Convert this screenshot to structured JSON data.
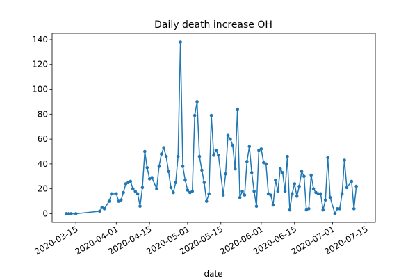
{
  "chart_data": {
    "type": "line",
    "title": "Daily death increase OH",
    "xlabel": "date",
    "ylabel": "",
    "xlim": [
      "2020-03-05",
      "2020-07-19"
    ],
    "ylim": [
      -7,
      145
    ],
    "grid": false,
    "line_color": "#1f77b4",
    "marker": "circle",
    "x_ticks": [
      "2020-03-15",
      "2020-04-01",
      "2020-04-15",
      "2020-05-01",
      "2020-05-15",
      "2020-06-01",
      "2020-06-15",
      "2020-07-01",
      "2020-07-15"
    ],
    "y_ticks": [
      0,
      20,
      40,
      60,
      80,
      100,
      120,
      140
    ],
    "series": [
      {
        "points": [
          [
            "2020-03-11",
            0
          ],
          [
            "2020-03-12",
            0
          ],
          [
            "2020-03-13",
            0
          ],
          [
            "2020-03-15",
            0
          ],
          [
            "2020-03-25",
            2
          ],
          [
            "2020-03-26",
            5
          ],
          [
            "2020-03-27",
            4
          ],
          [
            "2020-03-29",
            10
          ],
          [
            "2020-03-30",
            16
          ],
          [
            "2020-04-01",
            16
          ],
          [
            "2020-04-02",
            10
          ],
          [
            "2020-04-03",
            11
          ],
          [
            "2020-04-04",
            17
          ],
          [
            "2020-04-05",
            24
          ],
          [
            "2020-04-06",
            25
          ],
          [
            "2020-04-07",
            26
          ],
          [
            "2020-04-08",
            20
          ],
          [
            "2020-04-09",
            18
          ],
          [
            "2020-04-10",
            16
          ],
          [
            "2020-04-11",
            6
          ],
          [
            "2020-04-12",
            21
          ],
          [
            "2020-04-13",
            50
          ],
          [
            "2020-04-14",
            37
          ],
          [
            "2020-04-15",
            28
          ],
          [
            "2020-04-16",
            29
          ],
          [
            "2020-04-18",
            20
          ],
          [
            "2020-04-19",
            38
          ],
          [
            "2020-04-20",
            48
          ],
          [
            "2020-04-21",
            53
          ],
          [
            "2020-04-22",
            46
          ],
          [
            "2020-04-23",
            34
          ],
          [
            "2020-04-24",
            21
          ],
          [
            "2020-04-25",
            17
          ],
          [
            "2020-04-26",
            25
          ],
          [
            "2020-04-27",
            46
          ],
          [
            "2020-04-28",
            138
          ],
          [
            "2020-04-29",
            38
          ],
          [
            "2020-04-30",
            27
          ],
          [
            "2020-05-01",
            19
          ],
          [
            "2020-05-02",
            17
          ],
          [
            "2020-05-03",
            18
          ],
          [
            "2020-05-04",
            79
          ],
          [
            "2020-05-05",
            90
          ],
          [
            "2020-05-06",
            46
          ],
          [
            "2020-05-07",
            35
          ],
          [
            "2020-05-08",
            25
          ],
          [
            "2020-05-09",
            10
          ],
          [
            "2020-05-10",
            16
          ],
          [
            "2020-05-11",
            79
          ],
          [
            "2020-05-12",
            47
          ],
          [
            "2020-05-13",
            51
          ],
          [
            "2020-05-14",
            47
          ],
          [
            "2020-05-16",
            15
          ],
          [
            "2020-05-17",
            32
          ],
          [
            "2020-05-18",
            63
          ],
          [
            "2020-05-19",
            60
          ],
          [
            "2020-05-20",
            55
          ],
          [
            "2020-05-21",
            36
          ],
          [
            "2020-05-22",
            84
          ],
          [
            "2020-05-23",
            13
          ],
          [
            "2020-05-24",
            18
          ],
          [
            "2020-05-25",
            15
          ],
          [
            "2020-05-26",
            42
          ],
          [
            "2020-05-27",
            54
          ],
          [
            "2020-05-28",
            33
          ],
          [
            "2020-05-29",
            18
          ],
          [
            "2020-05-30",
            6
          ],
          [
            "2020-05-31",
            51
          ],
          [
            "2020-06-01",
            52
          ],
          [
            "2020-06-02",
            41
          ],
          [
            "2020-06-03",
            40
          ],
          [
            "2020-06-04",
            16
          ],
          [
            "2020-06-05",
            15
          ],
          [
            "2020-06-06",
            7
          ],
          [
            "2020-06-07",
            27
          ],
          [
            "2020-06-08",
            18
          ],
          [
            "2020-06-09",
            36
          ],
          [
            "2020-06-10",
            33
          ],
          [
            "2020-06-11",
            18
          ],
          [
            "2020-06-12",
            46
          ],
          [
            "2020-06-13",
            3
          ],
          [
            "2020-06-14",
            16
          ],
          [
            "2020-06-15",
            24
          ],
          [
            "2020-06-16",
            14
          ],
          [
            "2020-06-17",
            22
          ],
          [
            "2020-06-18",
            34
          ],
          [
            "2020-06-19",
            30
          ],
          [
            "2020-06-20",
            3
          ],
          [
            "2020-06-21",
            4
          ],
          [
            "2020-06-22",
            31
          ],
          [
            "2020-06-23",
            20
          ],
          [
            "2020-06-24",
            17
          ],
          [
            "2020-06-25",
            16
          ],
          [
            "2020-06-26",
            16
          ],
          [
            "2020-06-27",
            3
          ],
          [
            "2020-06-28",
            11
          ],
          [
            "2020-06-29",
            45
          ],
          [
            "2020-06-30",
            13
          ],
          [
            "2020-07-02",
            0
          ],
          [
            "2020-07-03",
            4
          ],
          [
            "2020-07-04",
            4
          ],
          [
            "2020-07-05",
            16
          ],
          [
            "2020-07-06",
            43
          ],
          [
            "2020-07-07",
            21
          ],
          [
            "2020-07-09",
            26
          ],
          [
            "2020-07-10",
            4
          ],
          [
            "2020-07-11",
            22
          ]
        ]
      }
    ]
  }
}
